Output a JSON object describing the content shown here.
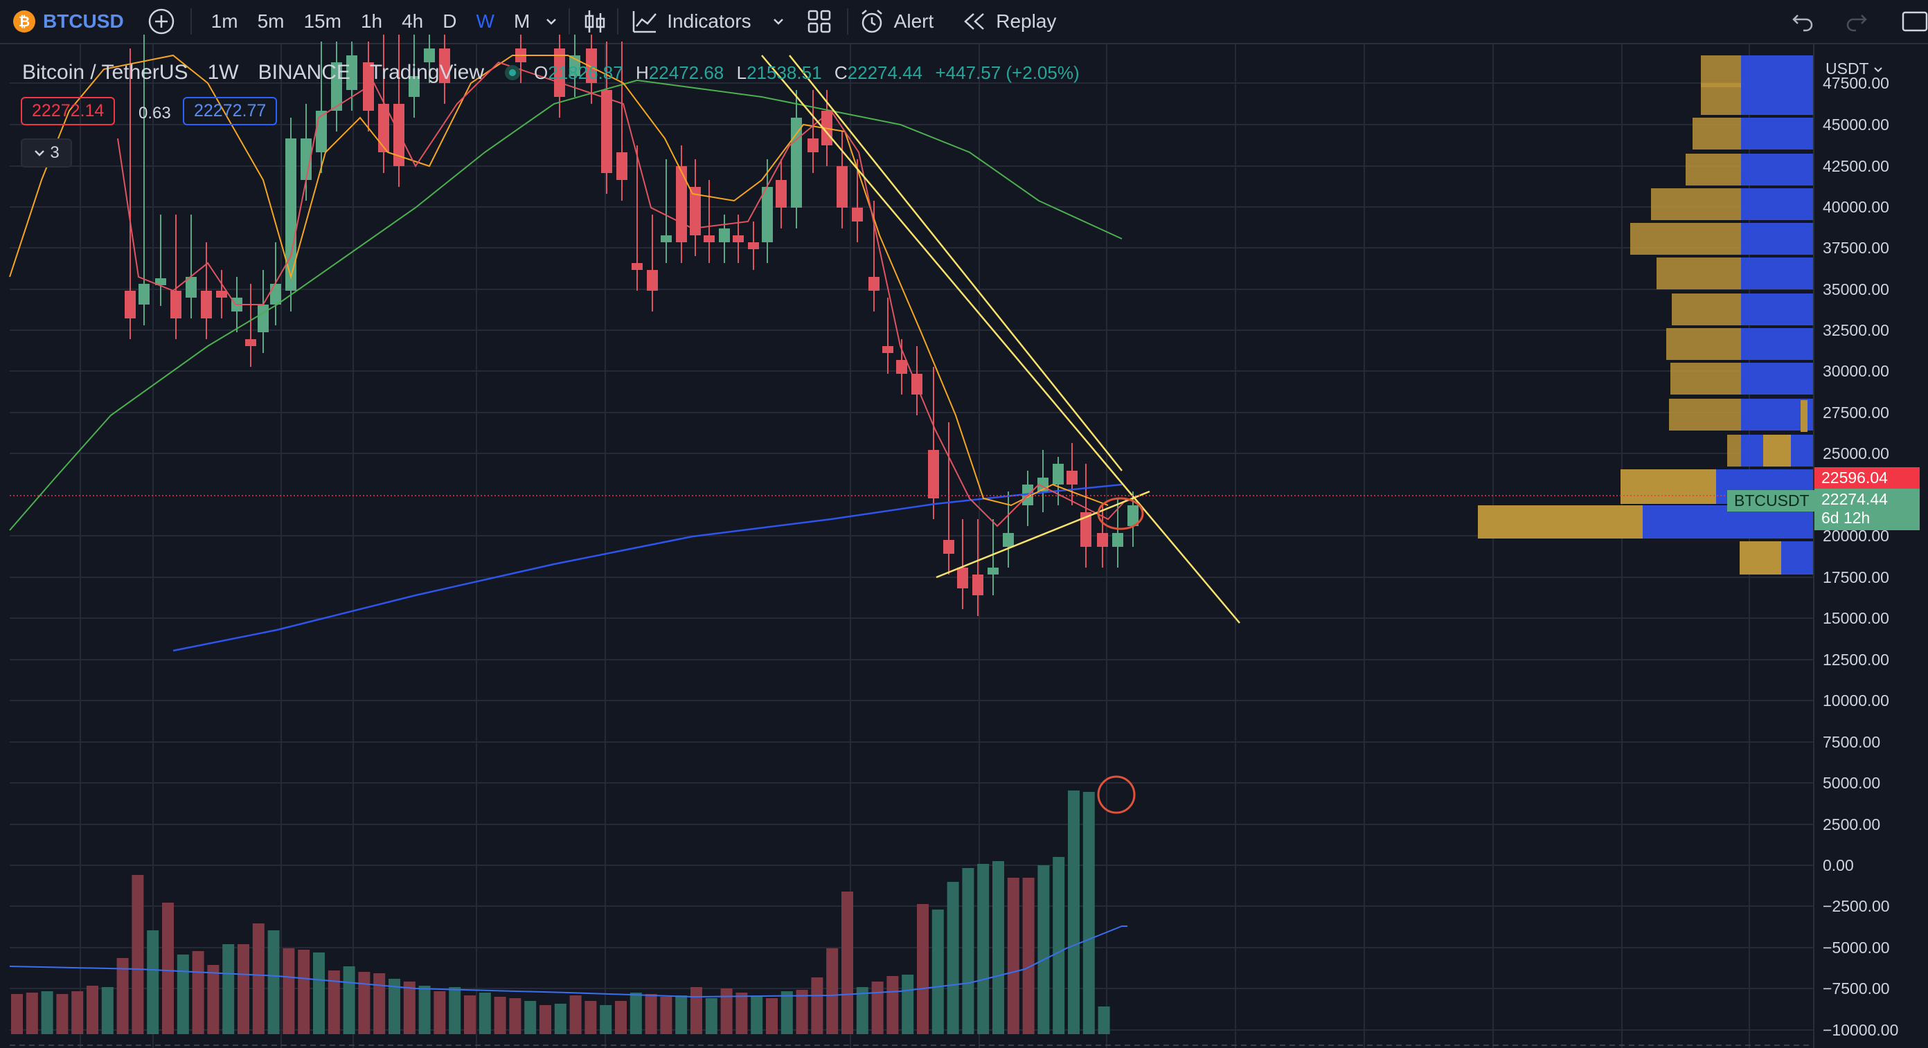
{
  "toolbar": {
    "symbol": "BTCUSD",
    "timeframes": [
      "1m",
      "5m",
      "15m",
      "1h",
      "4h",
      "D",
      "W",
      "M"
    ],
    "active_timeframe": "W",
    "indicators_label": "Indicators",
    "alert_label": "Alert",
    "replay_label": "Replay"
  },
  "legend": {
    "title": "Bitcoin / TetherUS",
    "interval": "1W",
    "exchange": "BINANCE",
    "source": "TradingView",
    "o_label": "O",
    "o_value": "21826.87",
    "h_label": "H",
    "h_value": "22472.68",
    "l_label": "L",
    "l_value": "21538.51",
    "c_label": "C",
    "c_value": "22274.44",
    "change": "+447.57 (+2.05%)",
    "bid": "22272.14",
    "spread": "0.63",
    "ask": "22272.77",
    "collapse_count": "3"
  },
  "price_axis": {
    "currency": "USDT",
    "labels": [
      "47500.00",
      "45000.00",
      "42500.00",
      "40000.00",
      "37500.00",
      "35000.00",
      "32500.00",
      "30000.00",
      "27500.00",
      "25000.00",
      "20000.00",
      "17500.00",
      "15000.00",
      "12500.00",
      "10000.00",
      "7500.00",
      "5000.00",
      "2500.00",
      "0.00",
      "−2500.00",
      "−5000.00",
      "−7500.00",
      "−10000.00"
    ],
    "marker_price": "22596.04",
    "symbol_badge": "BTCUSDT",
    "last_price": "22274.44",
    "countdown": "6d 12h"
  },
  "colors": {
    "background": "#131722",
    "up": "#5aa884",
    "down": "#e0545f",
    "ma_blue": "#2f54eb",
    "ma_green": "#4caf50",
    "trend_yellow": "#f7e26b",
    "vp_gold": "#b8923a",
    "vp_blue": "#2d4bd4",
    "price_red": "#f23645",
    "price_green": "#5aa884"
  },
  "icons": [
    "bitcoin-icon",
    "plus-circle-icon",
    "chevron-down-icon",
    "candles-icon",
    "indicators-icon",
    "layout-icon",
    "alarm-icon",
    "replay-icon",
    "undo-icon",
    "redo-icon",
    "fullscreen-icon"
  ]
}
